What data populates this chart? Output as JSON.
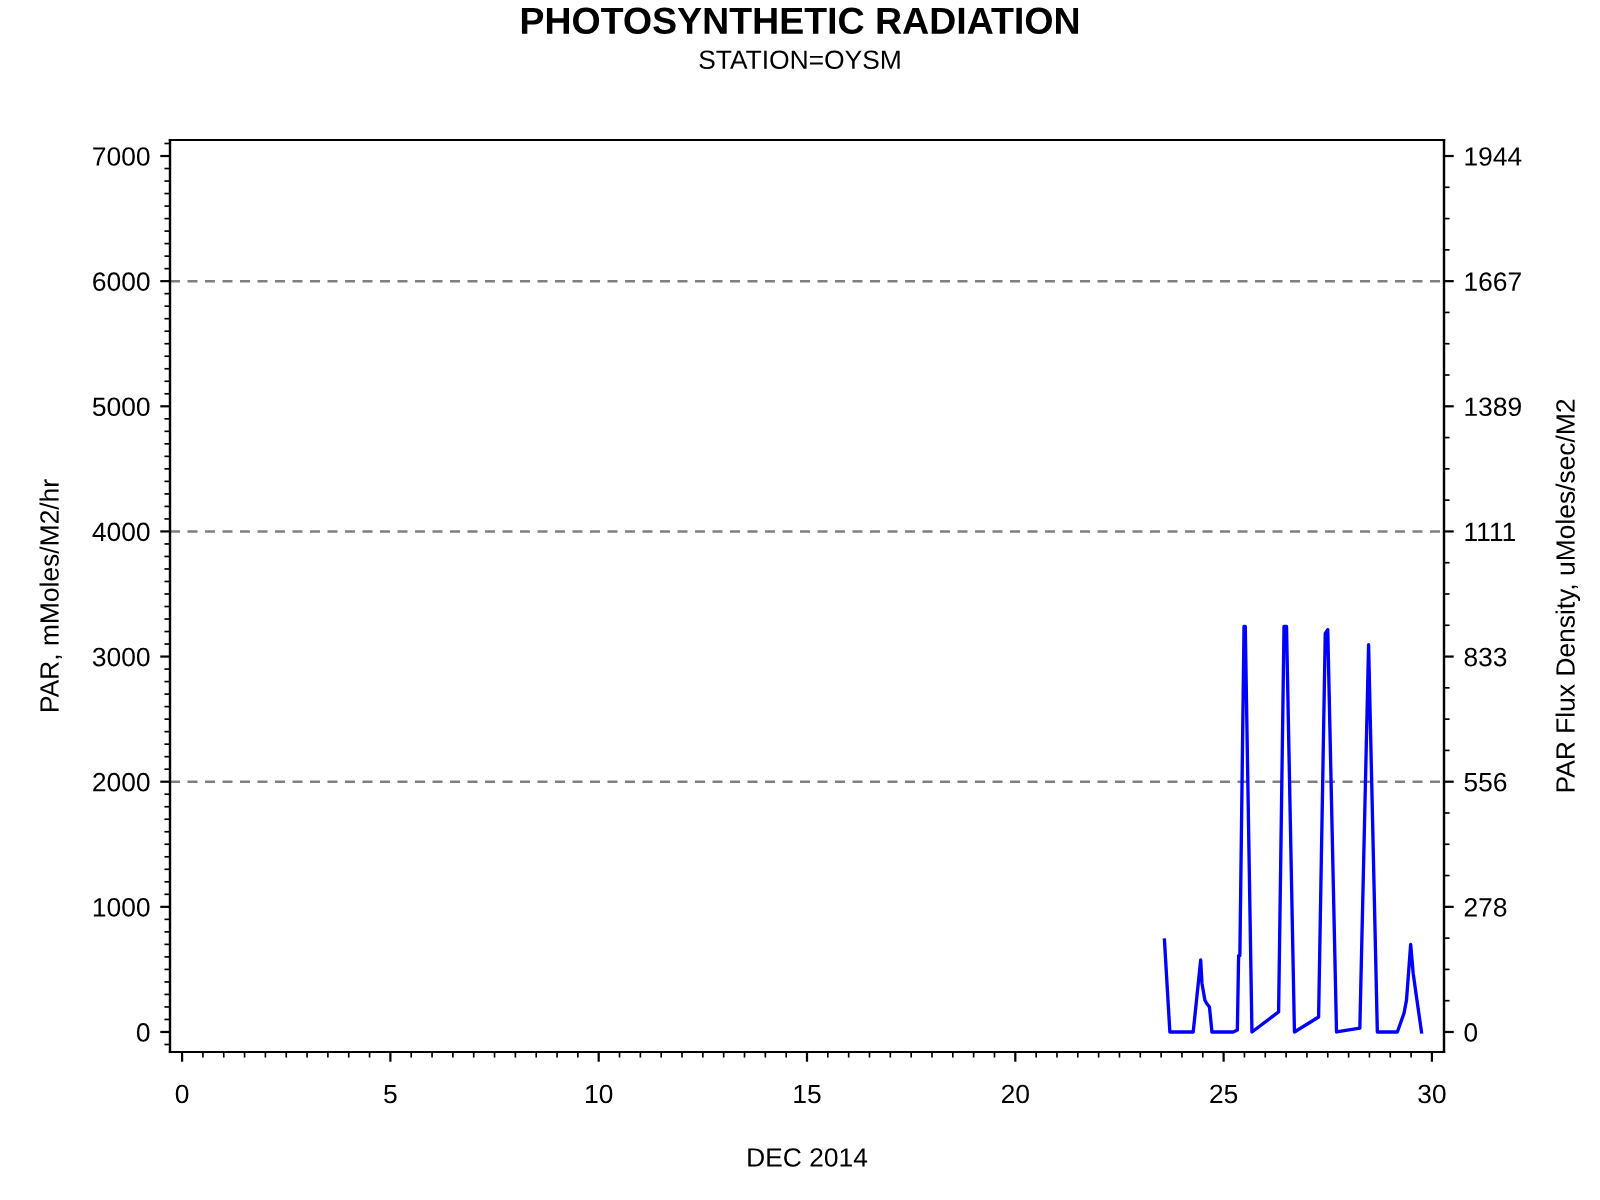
{
  "chart_data": {
    "type": "line",
    "title": "PHOTOSYNTHETIC RADIATION",
    "subtitle": "STATION=OYSM",
    "xlabel": "DEC 2014",
    "ylabel": "PAR, mMoles/M2/hr",
    "y2label": "PAR Flux Density, uMoles/sec/M2",
    "series": [
      {
        "color": "#0000ff",
        "x": [
          23.58,
          23.71,
          24.27,
          24.45,
          24.48,
          24.55,
          24.59,
          24.66,
          24.72,
          25.23,
          25.33,
          25.36,
          25.39,
          25.49,
          25.52,
          25.68,
          26.32,
          26.45,
          26.51,
          26.7,
          27.28,
          27.44,
          27.5,
          27.71,
          28.27,
          28.48,
          28.69,
          29.17,
          29.33,
          29.39,
          29.49,
          29.55,
          29.63,
          29.75
        ],
        "values": [
          735,
          0,
          0,
          575,
          390,
          255,
          230,
          200,
          0,
          0,
          15,
          610,
          610,
          3240,
          3240,
          0,
          160,
          3240,
          3240,
          0,
          120,
          3185,
          3215,
          0,
          30,
          3095,
          0,
          0,
          150,
          255,
          700,
          470,
          280,
          0
        ]
      }
    ],
    "xlim": [
      -0.29,
      30.29
    ],
    "xticks": [
      0,
      5,
      10,
      15,
      20,
      25,
      30
    ],
    "ylim": [
      -160,
      7128
    ],
    "yticks": [
      0,
      1000,
      2000,
      3000,
      4000,
      5000,
      6000,
      7000
    ],
    "y2lim": [
      -44.44,
      1980
    ],
    "y2ticks": [
      0,
      {
        "value": 277.78,
        "label": "278"
      },
      {
        "value": 555.56,
        "label": "556"
      },
      {
        "value": 833.33,
        "label": "833"
      },
      {
        "value": 1111.11,
        "label": "1111"
      },
      {
        "value": 1388.89,
        "label": "1389"
      },
      {
        "value": 1666.67,
        "label": "1667"
      },
      {
        "value": 1944.44,
        "label": "1944"
      }
    ],
    "ref_lines": [
      {
        "axis": "y",
        "value": 2000,
        "color": "#808080",
        "line_style": "dashed"
      },
      {
        "axis": "y",
        "value": 4000,
        "color": "#808080",
        "line_style": "dashed"
      },
      {
        "axis": "y",
        "value": 6000,
        "color": "#808080",
        "line_style": "dashed"
      }
    ],
    "grid": false,
    "legend": false
  }
}
